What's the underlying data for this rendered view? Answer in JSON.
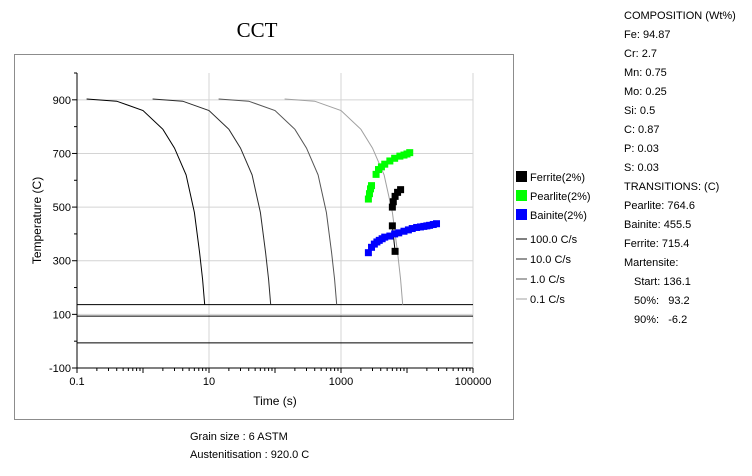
{
  "chart_data": {
    "type": "line",
    "title": "CCT",
    "xlabel": "Time (s)",
    "ylabel": "Temperature (C)",
    "x_scale": "log",
    "xlim": [
      0.1,
      100000
    ],
    "ylim": [
      -100,
      1000
    ],
    "x_ticks": [
      0.1,
      10,
      1000,
      100000
    ],
    "x_tick_labels": [
      "0.1",
      "10",
      "1000",
      "100000"
    ],
    "y_ticks": [
      -100,
      100,
      300,
      500,
      700,
      900
    ],
    "y_tick_labels": [
      "-100",
      "100",
      "300",
      "500",
      "700",
      "900"
    ],
    "grid": true,
    "horizontal_lines": [
      136.1,
      93.2,
      -6.2
    ],
    "cooling_curves": [
      {
        "name": "100.0 C/s",
        "color": "#000000",
        "points": [
          [
            0.14,
            903
          ],
          [
            0.4,
            895
          ],
          [
            1,
            860
          ],
          [
            2,
            790
          ],
          [
            3,
            720
          ],
          [
            4.5,
            620
          ],
          [
            6,
            480
          ],
          [
            7.2,
            330
          ],
          [
            8,
            230
          ],
          [
            8.6,
            136
          ]
        ]
      },
      {
        "name": "10.0 C/s",
        "color": "#2b2b2b",
        "points": [
          [
            1.4,
            903
          ],
          [
            4,
            895
          ],
          [
            10,
            860
          ],
          [
            20,
            790
          ],
          [
            30,
            720
          ],
          [
            45,
            620
          ],
          [
            60,
            480
          ],
          [
            72,
            330
          ],
          [
            80,
            230
          ],
          [
            86,
            136
          ]
        ]
      },
      {
        "name": "1.0 C/s",
        "color": "#555555",
        "points": [
          [
            14,
            903
          ],
          [
            40,
            895
          ],
          [
            100,
            860
          ],
          [
            200,
            790
          ],
          [
            300,
            720
          ],
          [
            450,
            620
          ],
          [
            600,
            480
          ],
          [
            720,
            330
          ],
          [
            800,
            230
          ],
          [
            860,
            136
          ]
        ]
      },
      {
        "name": "0.1 C/s",
        "color": "#a0a0a0",
        "points": [
          [
            140,
            903
          ],
          [
            400,
            895
          ],
          [
            1000,
            860
          ],
          [
            2000,
            790
          ],
          [
            3000,
            720
          ],
          [
            4500,
            620
          ],
          [
            6000,
            480
          ],
          [
            7200,
            330
          ],
          [
            8000,
            230
          ],
          [
            8600,
            136
          ]
        ]
      }
    ],
    "series": [
      {
        "name": "Ferrite(2%)",
        "color": "#000000",
        "points": [
          [
            6000,
            500
          ],
          [
            6200,
            520
          ],
          [
            6600,
            540
          ],
          [
            7200,
            555
          ],
          [
            8000,
            565
          ],
          [
            6000,
            430
          ],
          [
            6600,
            335
          ]
        ]
      },
      {
        "name": "Pearlite(2%)",
        "color": "#00ff00",
        "points": [
          [
            2600,
            530
          ],
          [
            2700,
            550
          ],
          [
            2800,
            568
          ],
          [
            2900,
            580
          ],
          [
            3400,
            622
          ],
          [
            3700,
            640
          ],
          [
            4100,
            650
          ],
          [
            4600,
            660
          ],
          [
            5500,
            672
          ],
          [
            6500,
            682
          ],
          [
            7800,
            690
          ],
          [
            9000,
            694
          ],
          [
            10000,
            698
          ],
          [
            11000,
            703
          ]
        ]
      },
      {
        "name": "Bainite(2%)",
        "color": "#0000ff",
        "points": [
          [
            2600,
            330
          ],
          [
            2900,
            350
          ],
          [
            3200,
            362
          ],
          [
            3500,
            370
          ],
          [
            3800,
            376
          ],
          [
            4200,
            382
          ],
          [
            4600,
            388
          ],
          [
            5500,
            392
          ],
          [
            6500,
            400
          ],
          [
            7500,
            404
          ],
          [
            9000,
            410
          ],
          [
            10500,
            415
          ],
          [
            12000,
            420
          ],
          [
            14000,
            424
          ],
          [
            16000,
            426
          ],
          [
            18000,
            428
          ],
          [
            20000,
            430
          ],
          [
            22000,
            432
          ],
          [
            25000,
            435
          ],
          [
            28000,
            438
          ]
        ]
      }
    ],
    "legend": {
      "placement": "right",
      "phases": [
        "Ferrite(2%)",
        "Pearlite(2%)",
        "Bainite(2%)"
      ],
      "rates": [
        "100.0 C/s",
        "10.0 C/s",
        "1.0 C/s",
        "0.1 C/s"
      ]
    }
  },
  "info": {
    "grain_size": "Grain size : 6 ASTM",
    "austenitisation": "Austenitisation : 920.0 C"
  },
  "composition": {
    "heading": "COMPOSITION (Wt%)",
    "items": [
      "Fe: 94.87",
      "Cr: 2.7",
      "Mn: 0.75",
      "Mo: 0.25",
      "Si: 0.5",
      "C: 0.87",
      "P: 0.03",
      "S: 0.03"
    ]
  },
  "transitions": {
    "heading": "TRANSITIONS: (C)",
    "items": [
      "Pearlite: 764.6",
      "Bainite: 455.5",
      "Ferrite: 715.4",
      "Martensite:"
    ],
    "martensite": [
      "Start: 136.1",
      "50%:   93.2",
      "90%:   -6.2"
    ]
  }
}
